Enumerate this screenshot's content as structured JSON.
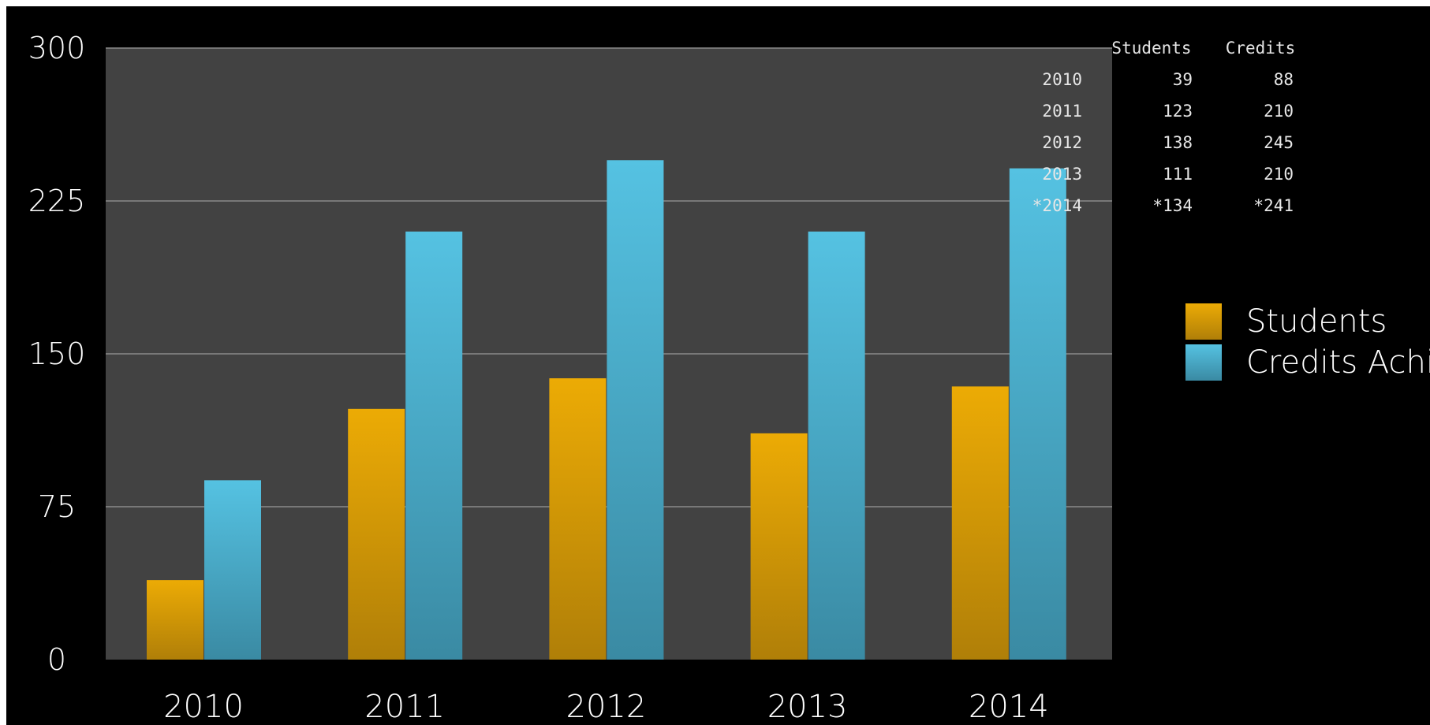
{
  "chart_data": {
    "type": "bar",
    "categories": [
      "2010",
      "2011",
      "2012",
      "2013",
      "2014"
    ],
    "series": [
      {
        "name": "Students",
        "values": [
          39,
          123,
          138,
          111,
          134
        ],
        "color_top": "#ecab05",
        "color_bottom": "#b07f08"
      },
      {
        "name": "Credits Achi",
        "values": [
          88,
          210,
          245,
          210,
          241
        ],
        "color_top": "#55c2e2",
        "color_bottom": "#3a8aa3"
      }
    ],
    "ylim": [
      0,
      300
    ],
    "yticks": [
      "0",
      "75",
      "150",
      "225",
      "300"
    ],
    "grid": true,
    "legend": "right",
    "title": "",
    "xlabel": "",
    "ylabel": "",
    "colors": {
      "outer_background": "#000000",
      "plot_background": "#424242",
      "gridline": "#8a8a8a",
      "text": "#ffffff",
      "table_text": "#e6e6e6"
    },
    "data_table": {
      "headers": [
        "Students",
        "Credits"
      ],
      "rows": [
        {
          "label": "2010",
          "students": "39",
          "credits": "88"
        },
        {
          "label": "2011",
          "students": "123",
          "credits": "210"
        },
        {
          "label": "2012",
          "students": "138",
          "credits": "245"
        },
        {
          "label": "2013",
          "students": "111",
          "credits": "210"
        },
        {
          "label": "*2014",
          "students": "*134",
          "credits": "*241"
        }
      ]
    }
  }
}
